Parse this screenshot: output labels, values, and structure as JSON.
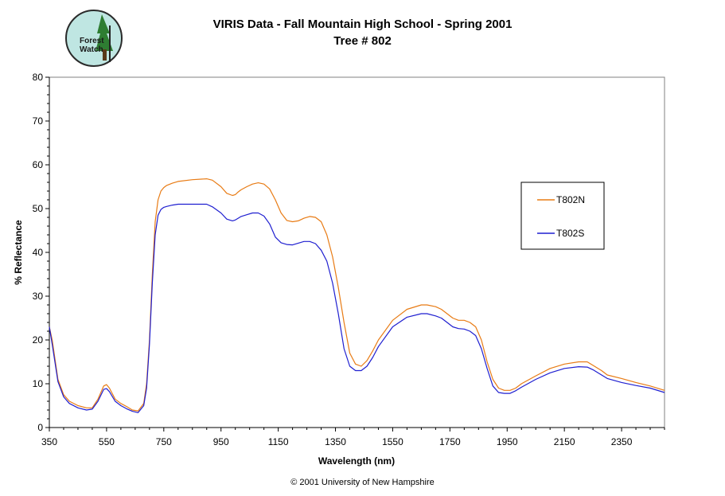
{
  "header": {
    "logo_alt": "Forest Watch",
    "logo_line1": "Forest",
    "logo_line2": "Watch"
  },
  "footer": {
    "copyright": "© 2001 University of New Hampshire"
  },
  "colors": {
    "series_north": "#e87b14",
    "series_south": "#1f1fd0",
    "plot_border": "#808080",
    "logo_bg": "#bfe6e2",
    "logo_tree": "#2e7d32"
  },
  "chart_data": {
    "type": "line",
    "title": "VIRIS Data - Fall Mountain High School - Spring 2001",
    "subtitle": "Tree # 802",
    "xlabel": "Wavelength (nm)",
    "ylabel": "% Reflectance",
    "xlim": [
      350,
      2500
    ],
    "ylim": [
      0,
      80
    ],
    "xticks": [
      350,
      550,
      750,
      950,
      1150,
      1350,
      1550,
      1750,
      1950,
      2150,
      2350
    ],
    "yticks": [
      0,
      10,
      20,
      30,
      40,
      50,
      60,
      70,
      80
    ],
    "grid": false,
    "legend_position": "right",
    "series": [
      {
        "name": "T802N",
        "x": [
          350,
          360,
          380,
          400,
          420,
          450,
          480,
          500,
          520,
          540,
          550,
          560,
          580,
          600,
          620,
          640,
          660,
          680,
          690,
          700,
          710,
          720,
          730,
          740,
          750,
          760,
          780,
          800,
          850,
          900,
          920,
          950,
          970,
          990,
          1000,
          1010,
          1020,
          1040,
          1060,
          1080,
          1100,
          1120,
          1140,
          1160,
          1180,
          1200,
          1220,
          1240,
          1260,
          1280,
          1300,
          1320,
          1340,
          1360,
          1380,
          1400,
          1420,
          1440,
          1460,
          1480,
          1500,
          1550,
          1600,
          1650,
          1670,
          1700,
          1720,
          1740,
          1760,
          1780,
          1800,
          1820,
          1840,
          1860,
          1880,
          1900,
          1920,
          1940,
          1960,
          1980,
          2000,
          2050,
          2100,
          2150,
          2200,
          2230,
          2250,
          2280,
          2300,
          2350,
          2400,
          2450,
          2500
        ],
        "values": [
          23,
          20,
          11,
          7.5,
          6,
          5,
          4.5,
          4.5,
          6.5,
          9.5,
          9.8,
          9,
          6.5,
          5.5,
          4.8,
          4,
          3.8,
          5.5,
          10,
          20,
          35,
          47,
          52,
          54,
          54.8,
          55.3,
          55.8,
          56.2,
          56.6,
          56.8,
          56.5,
          55,
          53.5,
          53,
          53.2,
          53.8,
          54.3,
          55,
          55.6,
          55.9,
          55.6,
          54.5,
          52,
          49,
          47.3,
          47,
          47.2,
          47.8,
          48.2,
          48,
          47,
          44,
          39,
          32,
          24,
          17,
          14.5,
          14,
          15.3,
          17.5,
          20,
          24.5,
          27,
          28,
          28,
          27.6,
          27,
          26,
          25,
          24.5,
          24.5,
          24,
          23,
          20,
          15,
          11,
          9,
          8.5,
          8.5,
          9,
          10,
          11.8,
          13.5,
          14.5,
          15,
          15,
          14.2,
          13,
          12,
          11.2,
          10.3,
          9.5,
          8.5
        ]
      },
      {
        "name": "T802S",
        "x": [
          350,
          360,
          380,
          400,
          420,
          450,
          480,
          500,
          520,
          540,
          550,
          560,
          580,
          600,
          620,
          640,
          660,
          680,
          690,
          700,
          710,
          720,
          730,
          740,
          750,
          760,
          780,
          800,
          850,
          900,
          920,
          950,
          970,
          990,
          1000,
          1010,
          1020,
          1040,
          1060,
          1080,
          1100,
          1120,
          1140,
          1160,
          1180,
          1200,
          1220,
          1240,
          1260,
          1280,
          1300,
          1320,
          1340,
          1360,
          1380,
          1400,
          1420,
          1440,
          1460,
          1480,
          1500,
          1550,
          1600,
          1650,
          1670,
          1700,
          1720,
          1740,
          1760,
          1780,
          1800,
          1820,
          1840,
          1860,
          1880,
          1900,
          1920,
          1940,
          1960,
          1980,
          2000,
          2050,
          2100,
          2150,
          2200,
          2230,
          2250,
          2280,
          2300,
          2350,
          2400,
          2450,
          2500
        ],
        "values": [
          23,
          19,
          10.5,
          7,
          5.5,
          4.5,
          4,
          4.2,
          6,
          8.7,
          8.9,
          8.2,
          6,
          5,
          4.3,
          3.7,
          3.4,
          5,
          9,
          19,
          33,
          44,
          48.5,
          49.8,
          50.3,
          50.5,
          50.8,
          51,
          51,
          51,
          50.4,
          49,
          47.6,
          47.2,
          47.4,
          47.8,
          48.2,
          48.6,
          49,
          49,
          48.3,
          46.5,
          43.5,
          42.2,
          41.8,
          41.7,
          42.1,
          42.5,
          42.5,
          42,
          40.5,
          38,
          33,
          26,
          18,
          14,
          13,
          13,
          14,
          16,
          18.5,
          23,
          25.2,
          26,
          26,
          25.5,
          25,
          24,
          23,
          22.6,
          22.5,
          22,
          21,
          18,
          13.5,
          9.5,
          8,
          7.8,
          7.8,
          8.4,
          9.2,
          11,
          12.5,
          13.5,
          13.9,
          13.8,
          13.2,
          12,
          11.2,
          10.3,
          9.6,
          9,
          8
        ]
      }
    ]
  }
}
